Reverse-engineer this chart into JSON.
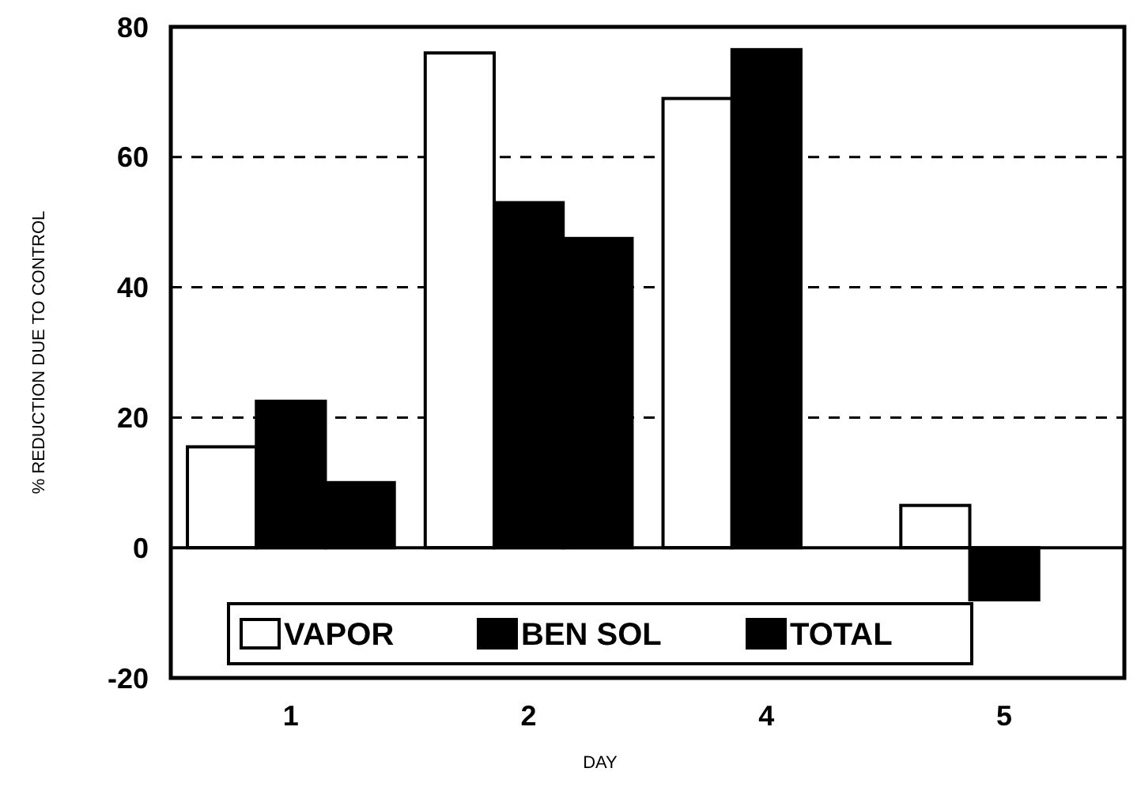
{
  "chart_data": {
    "type": "bar",
    "xlabel": "DAY",
    "ylabel": "% REDUCTION DUE TO CONTROL",
    "categories": [
      "1",
      "2",
      "4",
      "5"
    ],
    "series": [
      {
        "name": "VAPOR",
        "color": "#ffffff",
        "values": [
          15.5,
          76,
          69,
          6.5
        ]
      },
      {
        "name": "BEN SOL",
        "color": "#000000",
        "values": [
          22.5,
          53,
          76.5,
          -8
        ]
      },
      {
        "name": "TOTAL",
        "color": "#000000",
        "values": [
          10,
          47.5,
          null,
          null
        ]
      }
    ],
    "ylim": [
      -20,
      80
    ],
    "yticks": [
      -20,
      0,
      20,
      40,
      60,
      80
    ],
    "grid": "y",
    "legend": "bottom"
  }
}
